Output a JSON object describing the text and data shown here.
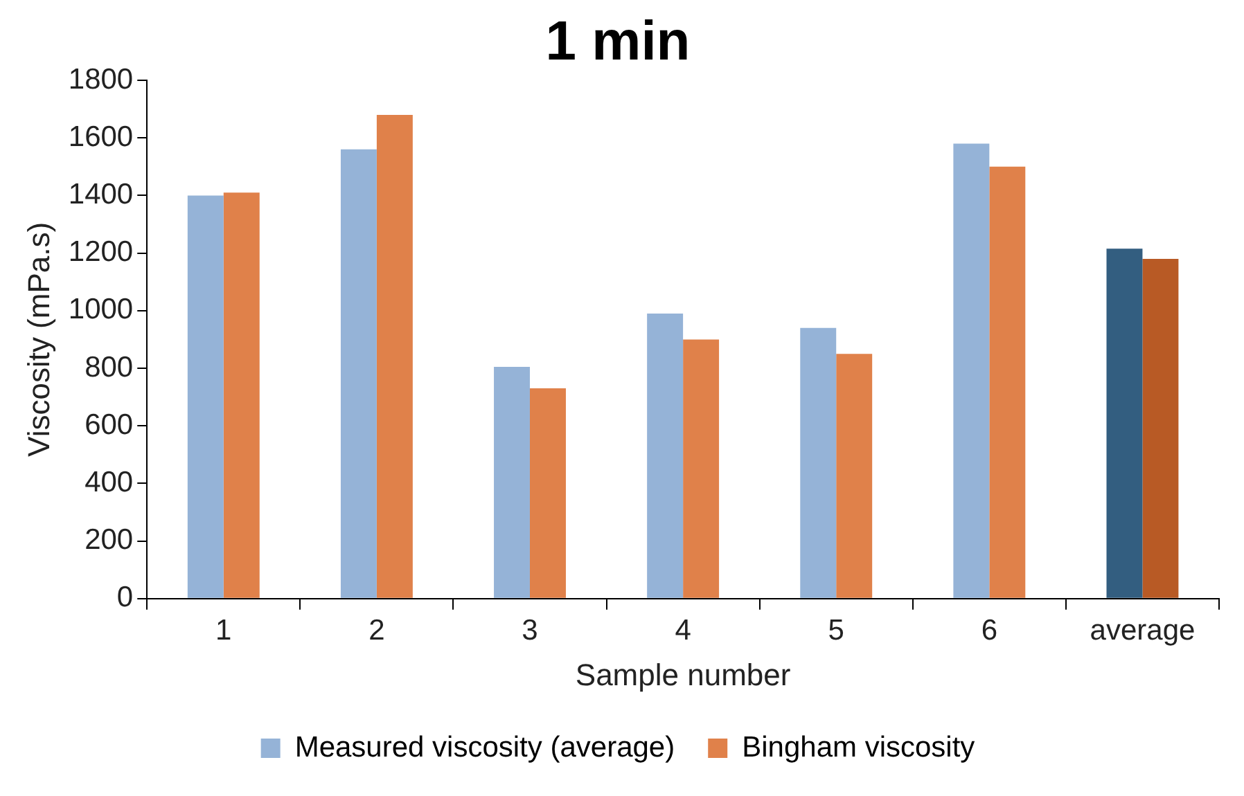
{
  "chart_data": {
    "type": "bar",
    "title": "1 min",
    "xlabel": "Sample number",
    "ylabel": "Viscosity (mPa.s)",
    "categories": [
      "1",
      "2",
      "3",
      "4",
      "5",
      "6",
      "average"
    ],
    "series": [
      {
        "name": "Measured viscosity (average)",
        "color": "#95b3d7",
        "colors": [
          "#95b3d7",
          "#95b3d7",
          "#95b3d7",
          "#95b3d7",
          "#95b3d7",
          "#95b3d7",
          "#335e80"
        ],
        "values": [
          1400,
          1560,
          805,
          990,
          940,
          1580,
          1215
        ]
      },
      {
        "name": "Bingham viscosity",
        "color": "#e0814a",
        "colors": [
          "#e0814a",
          "#e0814a",
          "#e0814a",
          "#e0814a",
          "#e0814a",
          "#e0814a",
          "#b85a25"
        ],
        "values": [
          1410,
          1680,
          730,
          900,
          850,
          1500,
          1180
        ]
      }
    ],
    "ylim": [
      0,
      1800
    ],
    "yticks": [
      0,
      200,
      400,
      600,
      800,
      1000,
      1200,
      1400,
      1600,
      1800
    ],
    "grid": false,
    "legend": "bottom"
  }
}
